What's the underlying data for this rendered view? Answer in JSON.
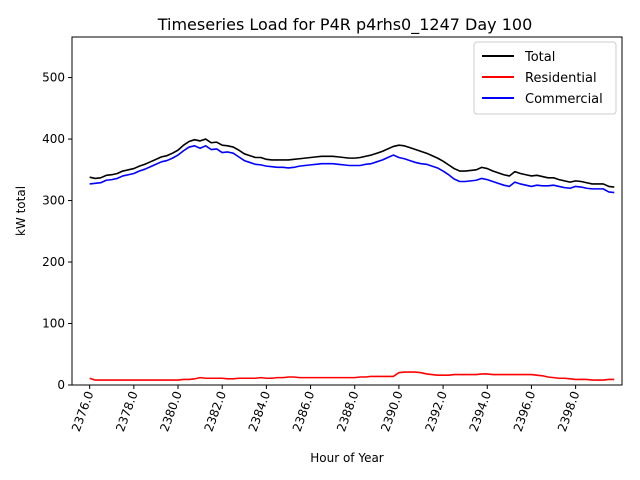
{
  "chart_data": {
    "type": "line",
    "title": "Timeseries Load for P4R p4rhs0_1247  Day 100",
    "xlabel": "Hour of Year",
    "ylabel": "kW total",
    "xlim": [
      2375.2,
      2400.1
    ],
    "ylim": [
      0,
      566
    ],
    "xticks": [
      2376,
      2378,
      2380,
      2382,
      2384,
      2386,
      2388,
      2390,
      2392,
      2394,
      2396,
      2398
    ],
    "xtick_labels": [
      "2376.0",
      "2378.0",
      "2380.0",
      "2382.0",
      "2384.0",
      "2386.0",
      "2388.0",
      "2390.0",
      "2392.0",
      "2394.0",
      "2396.0",
      "2398.0"
    ],
    "yticks": [
      0,
      100,
      200,
      300,
      400,
      500
    ],
    "ytick_labels": [
      "0",
      "100",
      "200",
      "300",
      "400",
      "500"
    ],
    "grid": false,
    "legend_position": "top-right",
    "x": [
      2376.0,
      2376.25,
      2376.5,
      2376.75,
      2377.0,
      2377.25,
      2377.5,
      2377.75,
      2378.0,
      2378.25,
      2378.5,
      2378.75,
      2379.0,
      2379.25,
      2379.5,
      2379.75,
      2380.0,
      2380.25,
      2380.5,
      2380.75,
      2381.0,
      2381.25,
      2381.5,
      2381.75,
      2382.0,
      2382.25,
      2382.5,
      2382.75,
      2383.0,
      2383.25,
      2383.5,
      2383.75,
      2384.0,
      2384.25,
      2384.5,
      2384.75,
      2385.0,
      2385.25,
      2385.5,
      2385.75,
      2386.0,
      2386.25,
      2386.5,
      2386.75,
      2387.0,
      2387.25,
      2387.5,
      2387.75,
      2388.0,
      2388.25,
      2388.5,
      2388.75,
      2389.0,
      2389.25,
      2389.5,
      2389.75,
      2390.0,
      2390.25,
      2390.5,
      2390.75,
      2391.0,
      2391.25,
      2391.5,
      2391.75,
      2392.0,
      2392.25,
      2392.5,
      2392.75,
      2393.0,
      2393.25,
      2393.5,
      2393.75,
      2394.0,
      2394.25,
      2394.5,
      2394.75,
      2395.0,
      2395.25,
      2395.5,
      2395.75,
      2396.0,
      2396.25,
      2396.5,
      2396.75,
      2397.0,
      2397.25,
      2397.5,
      2397.75,
      2398.0,
      2398.25,
      2398.5,
      2398.75,
      2399.0,
      2399.25,
      2399.5,
      2399.75
    ],
    "series": [
      {
        "name": "Total",
        "color": "#000000",
        "values": [
          338,
          336,
          337,
          341,
          342,
          344,
          348,
          350,
          352,
          356,
          359,
          363,
          367,
          371,
          373,
          377,
          382,
          390,
          396,
          399,
          397,
          400,
          394,
          395,
          390,
          389,
          387,
          382,
          376,
          373,
          370,
          370,
          367,
          366,
          366,
          366,
          366,
          367,
          368,
          369,
          370,
          371,
          372,
          372,
          372,
          371,
          370,
          369,
          369,
          370,
          372,
          374,
          377,
          380,
          384,
          388,
          390,
          389,
          386,
          383,
          380,
          377,
          373,
          369,
          364,
          358,
          352,
          348,
          348,
          349,
          350,
          354,
          352,
          348,
          345,
          342,
          340,
          347,
          344,
          342,
          340,
          341,
          339,
          337,
          337,
          334,
          332,
          330,
          332,
          331,
          329,
          327,
          327,
          327,
          323,
          322
        ]
      },
      {
        "name": "Residential",
        "color": "#ff0000",
        "values": [
          11,
          8,
          8,
          8,
          8,
          8,
          8,
          8,
          8,
          8,
          8,
          8,
          8,
          8,
          8,
          8,
          8,
          9,
          9,
          10,
          12,
          11,
          11,
          11,
          11,
          10,
          10,
          11,
          11,
          11,
          11,
          12,
          11,
          11,
          12,
          12,
          13,
          13,
          12,
          12,
          12,
          12,
          12,
          12,
          12,
          12,
          12,
          12,
          12,
          13,
          13,
          14,
          14,
          14,
          14,
          14,
          20,
          21,
          21,
          21,
          20,
          18,
          17,
          16,
          16,
          16,
          17,
          17,
          17,
          17,
          17,
          18,
          18,
          17,
          17,
          17,
          17,
          17,
          17,
          17,
          17,
          16,
          15,
          13,
          12,
          11,
          11,
          10,
          9,
          9,
          9,
          8,
          8,
          8,
          9,
          9
        ]
      },
      {
        "name": "Commercial",
        "color": "#0000ff",
        "values": [
          327,
          328,
          329,
          333,
          334,
          336,
          340,
          342,
          344,
          348,
          351,
          355,
          359,
          363,
          365,
          369,
          374,
          381,
          387,
          389,
          385,
          389,
          383,
          384,
          378,
          379,
          377,
          371,
          365,
          362,
          359,
          358,
          356,
          355,
          354,
          354,
          353,
          354,
          356,
          357,
          358,
          359,
          360,
          360,
          360,
          359,
          358,
          357,
          357,
          357,
          359,
          360,
          363,
          366,
          370,
          374,
          370,
          368,
          365,
          362,
          360,
          359,
          356,
          353,
          348,
          342,
          335,
          331,
          331,
          332,
          333,
          336,
          334,
          331,
          328,
          325,
          323,
          330,
          327,
          325,
          323,
          325,
          324,
          324,
          325,
          323,
          321,
          320,
          323,
          322,
          320,
          319,
          319,
          319,
          314,
          313
        ]
      }
    ]
  }
}
